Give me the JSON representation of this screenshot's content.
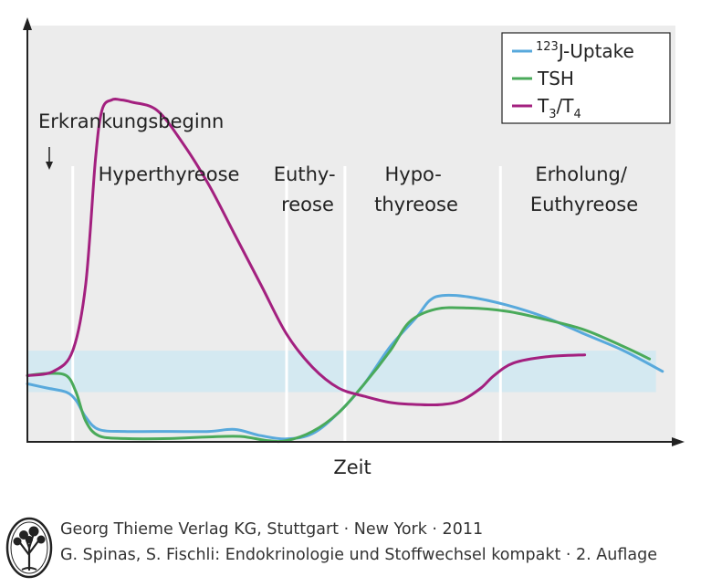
{
  "chart_data": {
    "type": "line",
    "xlabel": "Zeit",
    "ylabel": "",
    "xlim": [
      0,
      100
    ],
    "ylim": [
      0,
      100
    ],
    "reference_band": {
      "y_range": [
        12,
        22
      ],
      "color": "#d4e9f1"
    },
    "onset_label": "Erkrankungsbeginn",
    "phases": [
      {
        "name": "hyperthyreose",
        "lines": [
          "Hyperthyreose"
        ],
        "x_start": 7,
        "x_end": 40
      },
      {
        "name": "euthyreose",
        "lines": [
          "Euthy-",
          "reose"
        ],
        "x_start": 40,
        "x_end": 49
      },
      {
        "name": "hypothyreose",
        "lines": [
          "Hypo-",
          "thyreose"
        ],
        "x_start": 49,
        "x_end": 73
      },
      {
        "name": "erholung",
        "lines": [
          "Erholung/",
          "Euthyreose"
        ],
        "x_start": 73,
        "x_end": 100
      }
    ],
    "phase_boundaries": [
      7,
      40,
      49,
      73
    ],
    "legend": {
      "position": "top-right"
    },
    "series": [
      {
        "key": "uptake",
        "name_sup": "123",
        "name_main": "J-Uptake",
        "color": "#58a9dc",
        "x": [
          0,
          3,
          6,
          7.5,
          9,
          11,
          15,
          22,
          28,
          32,
          36,
          40,
          44,
          48,
          52,
          56,
          60,
          62,
          64,
          68,
          74,
          80,
          86,
          92,
          98
        ],
        "y": [
          14,
          13,
          12,
          10,
          6,
          3,
          2.5,
          2.5,
          2.5,
          3,
          1.5,
          0.7,
          2,
          7,
          14,
          23,
          30,
          34,
          35.3,
          35,
          33,
          30,
          26,
          22,
          17
        ]
      },
      {
        "key": "tsh",
        "name_main": "TSH",
        "color": "#4aaa5a",
        "x": [
          0,
          3,
          6,
          7.5,
          9,
          11,
          15,
          22,
          28,
          33,
          37,
          40,
          44,
          48,
          52,
          56,
          59,
          63,
          68,
          74,
          80,
          86,
          92,
          96
        ],
        "y": [
          16,
          16.5,
          16,
          12,
          5,
          1.5,
          0.8,
          0.8,
          1.2,
          1.3,
          0.3,
          0.3,
          2.5,
          7,
          14,
          22,
          29,
          32,
          32.3,
          31.5,
          29.5,
          27,
          23,
          20
        ]
      },
      {
        "key": "t3t4",
        "name_main": "T",
        "name_sub1": "3",
        "name_mid": "/T",
        "name_sub2": "4",
        "color": "#a3207f",
        "x": [
          0,
          4,
          7,
          9,
          10.5,
          11.5,
          13,
          14.5,
          16,
          20,
          24,
          28,
          32,
          36,
          40,
          44,
          48,
          52,
          56,
          60,
          64,
          67,
          70,
          72,
          75,
          80,
          86
        ],
        "y": [
          16,
          17,
          22,
          38,
          68,
          80,
          82.5,
          82.5,
          82,
          80,
          72,
          62,
          50,
          38,
          26,
          18,
          13,
          11,
          9.5,
          9,
          9,
          10,
          13,
          16,
          19,
          20.5,
          21
        ]
      }
    ]
  },
  "footer": {
    "line1": "Georg Thieme Verlag KG, Stuttgart · New York · 2011",
    "line2": "G. Spinas, S. Fischli: Endokrinologie und Stoffwechsel kompakt · 2. Auflage"
  }
}
